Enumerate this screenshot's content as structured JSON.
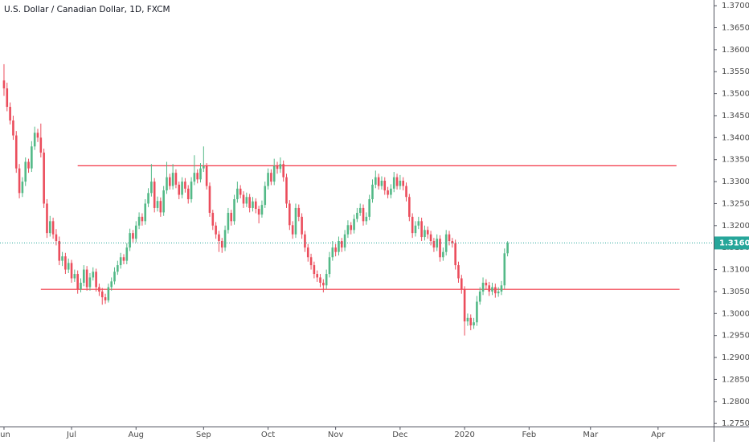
{
  "chart_data": {
    "type": "candlestick",
    "title": "U.S. Dollar / Canadian Dollar, 1D, FXCM",
    "up_color": "#53b987",
    "down_color": "#eb4d5c",
    "level_color": "#f23645",
    "last_color": "#26a69a",
    "grid": false,
    "xlim": [
      -1.3,
      231.1
    ],
    "ylim": [
      1.2743,
      1.3713
    ],
    "xticks": [
      {
        "value": 0,
        "label": "Jun"
      },
      {
        "value": 22,
        "label": "Jul"
      },
      {
        "value": 43,
        "label": "Aug"
      },
      {
        "value": 65,
        "label": "Sep"
      },
      {
        "value": 86,
        "label": "Oct"
      },
      {
        "value": 108,
        "label": "Nov"
      },
      {
        "value": 129,
        "label": "Dec"
      },
      {
        "value": 150,
        "label": "2020"
      },
      {
        "value": 171,
        "label": "Feb"
      },
      {
        "value": 191,
        "label": "Mar"
      },
      {
        "value": 213,
        "label": "Apr"
      }
    ],
    "yticks": [
      {
        "value": 1.275,
        "label": "1.27500"
      },
      {
        "value": 1.28,
        "label": "1.28000"
      },
      {
        "value": 1.285,
        "label": "1.28500"
      },
      {
        "value": 1.29,
        "label": "1.29000"
      },
      {
        "value": 1.295,
        "label": "1.29500"
      },
      {
        "value": 1.3,
        "label": "1.30000"
      },
      {
        "value": 1.305,
        "label": "1.30500"
      },
      {
        "value": 1.31,
        "label": "1.31000"
      },
      {
        "value": 1.315,
        "label": "1.31500"
      },
      {
        "value": 1.32,
        "label": "1.32000"
      },
      {
        "value": 1.325,
        "label": "1.32500"
      },
      {
        "value": 1.33,
        "label": "1.33000"
      },
      {
        "value": 1.335,
        "label": "1.33500"
      },
      {
        "value": 1.34,
        "label": "1.34000"
      },
      {
        "value": 1.345,
        "label": "1.34500"
      },
      {
        "value": 1.35,
        "label": "1.35000"
      },
      {
        "value": 1.355,
        "label": "1.35500"
      },
      {
        "value": 1.36,
        "label": "1.36000"
      },
      {
        "value": 1.365,
        "label": "1.36500"
      },
      {
        "value": 1.37,
        "label": "1.37000"
      }
    ],
    "levels": [
      {
        "value": 1.3336,
        "from": 24,
        "to": 219
      },
      {
        "value": 1.3055,
        "from": 12,
        "to": 220
      }
    ],
    "x": [
      0,
      1,
      2,
      3,
      4,
      5,
      6,
      7,
      8,
      9,
      10,
      11,
      12,
      13,
      14,
      15,
      16,
      17,
      18,
      19,
      20,
      21,
      22,
      23,
      24,
      25,
      26,
      27,
      28,
      29,
      30,
      31,
      32,
      33,
      34,
      35,
      36,
      37,
      38,
      39,
      40,
      41,
      42,
      43,
      44,
      45,
      46,
      47,
      48,
      49,
      50,
      51,
      52,
      53,
      54,
      55,
      56,
      57,
      58,
      59,
      60,
      61,
      62,
      63,
      64,
      65,
      66,
      67,
      68,
      69,
      70,
      71,
      72,
      73,
      74,
      75,
      76,
      77,
      78,
      79,
      80,
      81,
      82,
      83,
      84,
      85,
      86,
      87,
      88,
      89,
      90,
      91,
      92,
      93,
      94,
      95,
      96,
      97,
      98,
      99,
      100,
      101,
      102,
      103,
      104,
      105,
      106,
      107,
      108,
      109,
      110,
      111,
      112,
      113,
      114,
      115,
      116,
      117,
      118,
      119,
      120,
      121,
      122,
      123,
      124,
      125,
      126,
      127,
      128,
      129,
      130,
      131,
      132,
      133,
      134,
      135,
      136,
      137,
      138,
      139,
      140,
      141,
      142,
      143,
      144,
      145,
      146,
      147,
      148,
      149,
      150,
      151,
      152,
      153,
      154,
      155,
      156,
      157,
      158,
      159,
      160,
      161,
      162,
      163,
      164
    ],
    "candles": [
      [
        1.353,
        1.3567,
        1.3495,
        1.3512
      ],
      [
        1.3512,
        1.3525,
        1.346,
        1.347
      ],
      [
        1.347,
        1.348,
        1.343,
        1.3439
      ],
      [
        1.3439,
        1.345,
        1.3395,
        1.3405
      ],
      [
        1.3405,
        1.3415,
        1.332,
        1.333
      ],
      [
        1.333,
        1.334,
        1.3262,
        1.3274
      ],
      [
        1.3274,
        1.331,
        1.3265,
        1.33
      ],
      [
        1.33,
        1.3355,
        1.329,
        1.3345
      ],
      [
        1.3345,
        1.3352,
        1.332,
        1.333
      ],
      [
        1.333,
        1.3392,
        1.3322,
        1.338
      ],
      [
        1.338,
        1.3425,
        1.3372,
        1.3411
      ],
      [
        1.3411,
        1.342,
        1.339,
        1.34
      ],
      [
        1.34,
        1.3432,
        1.3355,
        1.3366
      ],
      [
        1.3366,
        1.3375,
        1.324,
        1.325
      ],
      [
        1.325,
        1.326,
        1.3172,
        1.3183
      ],
      [
        1.3183,
        1.3222,
        1.3175,
        1.321
      ],
      [
        1.321,
        1.3218,
        1.317,
        1.318
      ],
      [
        1.318,
        1.3192,
        1.3155,
        1.3165
      ],
      [
        1.3165,
        1.3175,
        1.311,
        1.312
      ],
      [
        1.312,
        1.314,
        1.3108,
        1.313
      ],
      [
        1.313,
        1.3138,
        1.309,
        1.31
      ],
      [
        1.31,
        1.3125,
        1.3092,
        1.3115
      ],
      [
        1.3115,
        1.3122,
        1.307,
        1.308
      ],
      [
        1.308,
        1.31,
        1.3072,
        1.309
      ],
      [
        1.309,
        1.3098,
        1.3045,
        1.3055
      ],
      [
        1.3055,
        1.308,
        1.3048,
        1.307
      ],
      [
        1.307,
        1.311,
        1.3062,
        1.31
      ],
      [
        1.31,
        1.3108,
        1.3052,
        1.306
      ],
      [
        1.306,
        1.3092,
        1.3052,
        1.3082
      ],
      [
        1.3082,
        1.3105,
        1.3075,
        1.3095
      ],
      [
        1.3095,
        1.3102,
        1.305,
        1.306
      ],
      [
        1.306,
        1.3068,
        1.304,
        1.305
      ],
      [
        1.305,
        1.3058,
        1.302,
        1.3037
      ],
      [
        1.3037,
        1.3045,
        1.3022,
        1.303
      ],
      [
        1.303,
        1.3068,
        1.3025,
        1.306
      ],
      [
        1.306,
        1.3082,
        1.3052,
        1.3073
      ],
      [
        1.3073,
        1.3105,
        1.3066,
        1.3095
      ],
      [
        1.3095,
        1.312,
        1.3088,
        1.311
      ],
      [
        1.311,
        1.3138,
        1.3102,
        1.3128
      ],
      [
        1.3128,
        1.3135,
        1.3112,
        1.312
      ],
      [
        1.312,
        1.316,
        1.3112,
        1.315
      ],
      [
        1.315,
        1.3193,
        1.3142,
        1.3183
      ],
      [
        1.3183,
        1.319,
        1.3162,
        1.317
      ],
      [
        1.317,
        1.321,
        1.3162,
        1.32
      ],
      [
        1.32,
        1.323,
        1.3192,
        1.322
      ],
      [
        1.322,
        1.3228,
        1.32,
        1.321
      ],
      [
        1.321,
        1.326,
        1.3202,
        1.325
      ],
      [
        1.325,
        1.3285,
        1.3242,
        1.3274
      ],
      [
        1.3274,
        1.334,
        1.3266,
        1.33
      ],
      [
        1.33,
        1.3308,
        1.323,
        1.324
      ],
      [
        1.324,
        1.3266,
        1.3232,
        1.3256
      ],
      [
        1.3256,
        1.3264,
        1.322,
        1.323
      ],
      [
        1.323,
        1.329,
        1.3222,
        1.328
      ],
      [
        1.328,
        1.3345,
        1.3272,
        1.331
      ],
      [
        1.331,
        1.3318,
        1.3282,
        1.329
      ],
      [
        1.329,
        1.334,
        1.3282,
        1.332
      ],
      [
        1.332,
        1.3328,
        1.3285,
        1.3293
      ],
      [
        1.3293,
        1.33,
        1.326,
        1.327
      ],
      [
        1.327,
        1.331,
        1.3262,
        1.33
      ],
      [
        1.33,
        1.3308,
        1.3275,
        1.3284
      ],
      [
        1.3284,
        1.3292,
        1.325,
        1.326
      ],
      [
        1.326,
        1.331,
        1.3252,
        1.33
      ],
      [
        1.33,
        1.336,
        1.3292,
        1.332
      ],
      [
        1.332,
        1.3328,
        1.3296,
        1.3305
      ],
      [
        1.3305,
        1.3342,
        1.3298,
        1.333
      ],
      [
        1.333,
        1.338,
        1.3322,
        1.3335
      ],
      [
        1.3335,
        1.3342,
        1.3282,
        1.329
      ],
      [
        1.329,
        1.3298,
        1.322,
        1.3229
      ],
      [
        1.3229,
        1.3236,
        1.319,
        1.32
      ],
      [
        1.32,
        1.3208,
        1.317,
        1.318
      ],
      [
        1.318,
        1.3188,
        1.314,
        1.3165
      ],
      [
        1.3165,
        1.3172,
        1.3138,
        1.315
      ],
      [
        1.315,
        1.32,
        1.3142,
        1.319
      ],
      [
        1.319,
        1.324,
        1.3182,
        1.3229
      ],
      [
        1.3229,
        1.3236,
        1.32,
        1.321
      ],
      [
        1.321,
        1.327,
        1.3202,
        1.326
      ],
      [
        1.326,
        1.33,
        1.3252,
        1.3284
      ],
      [
        1.3284,
        1.3292,
        1.3262,
        1.327
      ],
      [
        1.327,
        1.3278,
        1.324,
        1.325
      ],
      [
        1.325,
        1.3275,
        1.3242,
        1.3265
      ],
      [
        1.3265,
        1.3272,
        1.323,
        1.324
      ],
      [
        1.324,
        1.3265,
        1.3232,
        1.3255
      ],
      [
        1.3255,
        1.3262,
        1.3228,
        1.3238
      ],
      [
        1.3238,
        1.3245,
        1.3205,
        1.3225
      ],
      [
        1.3225,
        1.3257,
        1.3218,
        1.3247
      ],
      [
        1.3247,
        1.33,
        1.324,
        1.329
      ],
      [
        1.329,
        1.333,
        1.3282,
        1.332
      ],
      [
        1.332,
        1.3328,
        1.3292,
        1.33
      ],
      [
        1.33,
        1.3352,
        1.3292,
        1.3335
      ],
      [
        1.3335,
        1.3345,
        1.3318,
        1.3329
      ],
      [
        1.3329,
        1.3355,
        1.332,
        1.334
      ],
      [
        1.334,
        1.3348,
        1.33,
        1.331
      ],
      [
        1.331,
        1.3318,
        1.324,
        1.325
      ],
      [
        1.325,
        1.3258,
        1.319,
        1.3201
      ],
      [
        1.3201,
        1.321,
        1.317,
        1.318
      ],
      [
        1.318,
        1.325,
        1.3172,
        1.324
      ],
      [
        1.324,
        1.3248,
        1.321,
        1.322
      ],
      [
        1.322,
        1.3228,
        1.317,
        1.318
      ],
      [
        1.318,
        1.3188,
        1.314,
        1.315
      ],
      [
        1.315,
        1.3158,
        1.3118,
        1.3128
      ],
      [
        1.3128,
        1.3136,
        1.31,
        1.311
      ],
      [
        1.311,
        1.3118,
        1.308,
        1.309
      ],
      [
        1.309,
        1.3098,
        1.3072,
        1.3082
      ],
      [
        1.3082,
        1.309,
        1.306,
        1.307
      ],
      [
        1.307,
        1.3078,
        1.3048,
        1.3064
      ],
      [
        1.3064,
        1.31,
        1.3056,
        1.309
      ],
      [
        1.309,
        1.314,
        1.3082,
        1.3128
      ],
      [
        1.3128,
        1.3165,
        1.312,
        1.315
      ],
      [
        1.315,
        1.3158,
        1.313,
        1.314
      ],
      [
        1.314,
        1.3175,
        1.3132,
        1.3165
      ],
      [
        1.3165,
        1.3172,
        1.314,
        1.315
      ],
      [
        1.315,
        1.319,
        1.3142,
        1.318
      ],
      [
        1.318,
        1.3212,
        1.3172,
        1.3201
      ],
      [
        1.3201,
        1.3208,
        1.318,
        1.319
      ],
      [
        1.319,
        1.3225,
        1.3182,
        1.3215
      ],
      [
        1.3215,
        1.324,
        1.3208,
        1.3229
      ],
      [
        1.3229,
        1.325,
        1.3222,
        1.324
      ],
      [
        1.324,
        1.3248,
        1.32,
        1.321
      ],
      [
        1.321,
        1.323,
        1.3202,
        1.322
      ],
      [
        1.322,
        1.327,
        1.3212,
        1.326
      ],
      [
        1.326,
        1.3305,
        1.3252,
        1.3293
      ],
      [
        1.3293,
        1.3325,
        1.3285,
        1.331
      ],
      [
        1.331,
        1.3318,
        1.3282,
        1.329
      ],
      [
        1.329,
        1.3312,
        1.3282,
        1.3302
      ],
      [
        1.3302,
        1.331,
        1.327,
        1.328
      ],
      [
        1.328,
        1.3288,
        1.3262,
        1.327
      ],
      [
        1.327,
        1.3294,
        1.3262,
        1.3284
      ],
      [
        1.3284,
        1.3322,
        1.3276,
        1.331
      ],
      [
        1.331,
        1.3318,
        1.3282,
        1.329
      ],
      [
        1.329,
        1.3315,
        1.3282,
        1.3302
      ],
      [
        1.3302,
        1.331,
        1.328,
        1.329
      ],
      [
        1.329,
        1.3298,
        1.3255,
        1.3265
      ],
      [
        1.3265,
        1.3272,
        1.321,
        1.322
      ],
      [
        1.322,
        1.3228,
        1.3172,
        1.3183
      ],
      [
        1.3183,
        1.321,
        1.3175,
        1.32
      ],
      [
        1.32,
        1.322,
        1.3192,
        1.321
      ],
      [
        1.321,
        1.3218,
        1.3165,
        1.3174
      ],
      [
        1.3174,
        1.32,
        1.3166,
        1.319
      ],
      [
        1.319,
        1.3198,
        1.317,
        1.318
      ],
      [
        1.318,
        1.3188,
        1.3155,
        1.3165
      ],
      [
        1.3165,
        1.3172,
        1.314,
        1.315
      ],
      [
        1.315,
        1.318,
        1.3142,
        1.317
      ],
      [
        1.317,
        1.3178,
        1.3118,
        1.3128
      ],
      [
        1.3128,
        1.315,
        1.312,
        1.314
      ],
      [
        1.314,
        1.319,
        1.3132,
        1.318
      ],
      [
        1.318,
        1.3188,
        1.3155,
        1.3165
      ],
      [
        1.3165,
        1.3172,
        1.315,
        1.316
      ],
      [
        1.316,
        1.3168,
        1.31,
        1.311
      ],
      [
        1.311,
        1.3118,
        1.307,
        1.308
      ],
      [
        1.308,
        1.3088,
        1.3045,
        1.3055
      ],
      [
        1.3055,
        1.3062,
        1.295,
        1.2982
      ],
      [
        1.2982,
        1.3,
        1.2972,
        1.299
      ],
      [
        1.299,
        1.2998,
        1.2962,
        1.2973
      ],
      [
        1.2973,
        1.299,
        1.2965,
        1.298
      ],
      [
        1.298,
        1.304,
        1.2972,
        1.3027
      ],
      [
        1.3027,
        1.306,
        1.302,
        1.305
      ],
      [
        1.305,
        1.3082,
        1.3042,
        1.307
      ],
      [
        1.307,
        1.3078,
        1.3054,
        1.3064
      ],
      [
        1.3064,
        1.3072,
        1.304,
        1.305
      ],
      [
        1.305,
        1.307,
        1.3042,
        1.306
      ],
      [
        1.306,
        1.3068,
        1.3036,
        1.3046
      ],
      [
        1.3046,
        1.306,
        1.3038,
        1.305
      ],
      [
        1.305,
        1.3074,
        1.3042,
        1.3064
      ],
      [
        1.3064,
        1.3148,
        1.3056,
        1.3137
      ],
      [
        1.3137,
        1.31645,
        1.313,
        1.31605
      ]
    ]
  }
}
